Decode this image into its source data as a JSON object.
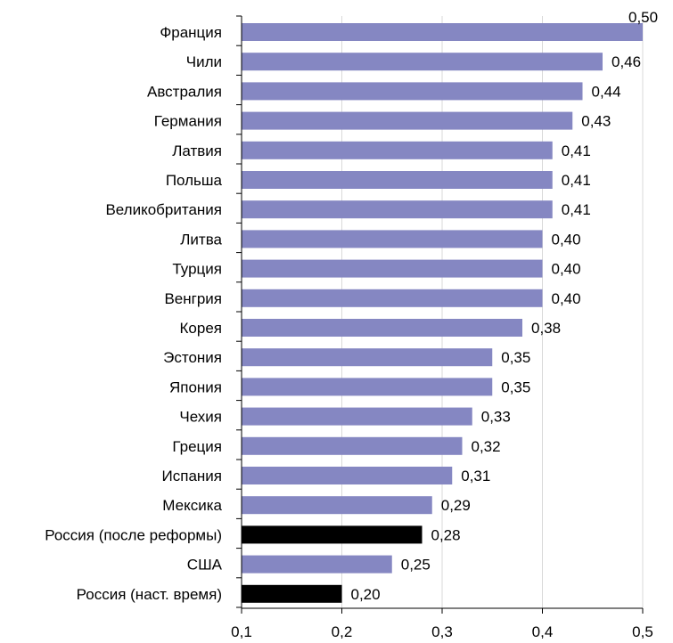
{
  "chart_data": {
    "type": "bar",
    "orientation": "horizontal",
    "categories": [
      "Франция",
      "Чили",
      "Австралия",
      "Германия",
      "Латвия",
      "Польша",
      "Великобритания",
      "Литва",
      "Турция",
      "Венгрия",
      "Корея",
      "Эстония",
      "Япония",
      "Чехия",
      "Греция",
      "Испания",
      "Мексика",
      "Россия (после реформы)",
      "США",
      "Россия (наст. время)"
    ],
    "values": [
      0.5,
      0.46,
      0.44,
      0.43,
      0.41,
      0.41,
      0.41,
      0.4,
      0.4,
      0.4,
      0.38,
      0.35,
      0.35,
      0.33,
      0.32,
      0.31,
      0.29,
      0.28,
      0.25,
      0.2
    ],
    "value_labels": [
      "0,50",
      "0,46",
      "0,44",
      "0,43",
      "0,41",
      "0,41",
      "0,41",
      "0,40",
      "0,40",
      "0,40",
      "0,38",
      "0,35",
      "0,35",
      "0,33",
      "0,32",
      "0,31",
      "0,29",
      "0,28",
      "0,25",
      "0,20"
    ],
    "highlighted": [
      false,
      false,
      false,
      false,
      false,
      false,
      false,
      false,
      false,
      false,
      false,
      false,
      false,
      false,
      false,
      false,
      false,
      true,
      false,
      true
    ],
    "xlim": [
      0.1,
      0.5
    ],
    "x_ticks": [
      0.1,
      0.2,
      0.3,
      0.4,
      0.5
    ],
    "x_tick_labels": [
      "0,1",
      "0,2",
      "0,3",
      "0,4",
      "0,5"
    ],
    "title": "",
    "xlabel": "",
    "ylabel": "",
    "grid": "vertical",
    "legend": "none",
    "colors": {
      "bar": "#8587c2",
      "highlight": "#000000",
      "grid": "#d9d9d9",
      "axis": "#000000"
    }
  }
}
